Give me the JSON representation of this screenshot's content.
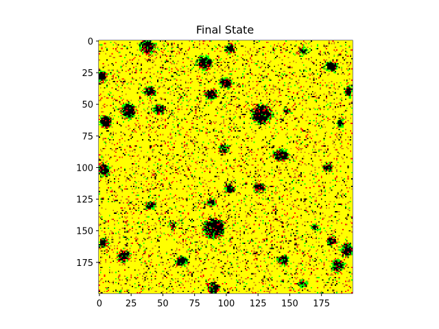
{
  "chart_data": {
    "type": "heatmap",
    "title": "Final State",
    "xlabel": "",
    "ylabel": "",
    "grid": false,
    "legend": "none",
    "grid_size": [
      200,
      200
    ],
    "xlim": [
      -0.5,
      199.5
    ],
    "ylim": [
      199.5,
      -0.5
    ],
    "x_ticks": [
      0,
      25,
      50,
      75,
      100,
      125,
      150,
      175
    ],
    "y_ticks": [
      0,
      25,
      50,
      75,
      100,
      125,
      150,
      175
    ],
    "x_tick_labels": [
      "0",
      "25",
      "50",
      "75",
      "100",
      "125",
      "150",
      "175"
    ],
    "y_tick_labels": [
      "0",
      "25",
      "50",
      "75",
      "100",
      "125",
      "150",
      "175"
    ],
    "colormap": [
      "#000000",
      "#00ff00",
      "#ff0000",
      "#ffff00"
    ],
    "colormap_name": "hot-like (black, green, red, yellow)",
    "dominant_value_color": "#ffff00",
    "black_regions": [
      {
        "x": 38,
        "y": 4,
        "r": 5
      },
      {
        "x": 103,
        "y": 6,
        "r": 3
      },
      {
        "x": 160,
        "y": 8,
        "r": 2
      },
      {
        "x": 2,
        "y": 28,
        "r": 3
      },
      {
        "x": 40,
        "y": 40,
        "r": 4
      },
      {
        "x": 83,
        "y": 17,
        "r": 5
      },
      {
        "x": 100,
        "y": 33,
        "r": 4
      },
      {
        "x": 183,
        "y": 20,
        "r": 4
      },
      {
        "x": 197,
        "y": 40,
        "r": 3
      },
      {
        "x": 23,
        "y": 55,
        "r": 5
      },
      {
        "x": 47,
        "y": 54,
        "r": 4
      },
      {
        "x": 88,
        "y": 42,
        "r": 4
      },
      {
        "x": 128,
        "y": 58,
        "r": 7
      },
      {
        "x": 148,
        "y": 55,
        "r": 2
      },
      {
        "x": 190,
        "y": 65,
        "r": 2
      },
      {
        "x": 5,
        "y": 64,
        "r": 4
      },
      {
        "x": 98,
        "y": 85,
        "r": 3
      },
      {
        "x": 143,
        "y": 90,
        "r": 5
      },
      {
        "x": 180,
        "y": 100,
        "r": 3
      },
      {
        "x": 3,
        "y": 102,
        "r": 4
      },
      {
        "x": 126,
        "y": 116,
        "r": 4
      },
      {
        "x": 90,
        "y": 148,
        "r": 8
      },
      {
        "x": 103,
        "y": 117,
        "r": 3
      },
      {
        "x": 88,
        "y": 127,
        "r": 3
      },
      {
        "x": 40,
        "y": 130,
        "r": 3
      },
      {
        "x": 183,
        "y": 158,
        "r": 3
      },
      {
        "x": 195,
        "y": 165,
        "r": 4
      },
      {
        "x": 3,
        "y": 160,
        "r": 3
      },
      {
        "x": 19,
        "y": 170,
        "r": 4
      },
      {
        "x": 65,
        "y": 174,
        "r": 4
      },
      {
        "x": 145,
        "y": 173,
        "r": 3
      },
      {
        "x": 188,
        "y": 178,
        "r": 4
      },
      {
        "x": 90,
        "y": 195,
        "r": 4
      },
      {
        "x": 160,
        "y": 192,
        "r": 2
      },
      {
        "x": 58,
        "y": 146,
        "r": 2
      },
      {
        "x": 170,
        "y": 147,
        "r": 2
      }
    ]
  }
}
